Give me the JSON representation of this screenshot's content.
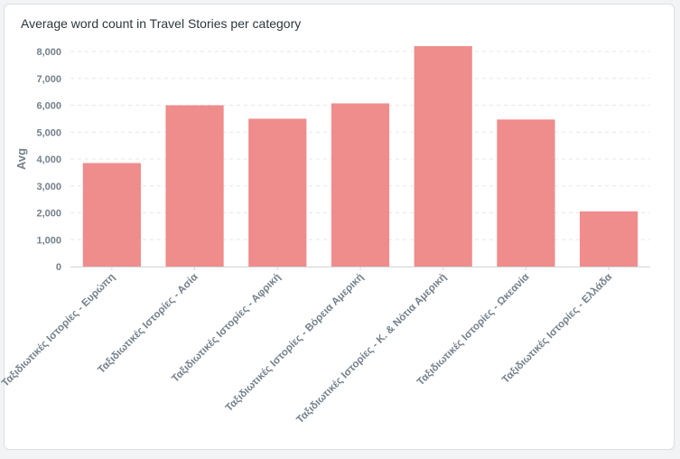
{
  "card": {
    "title": "Average word count in Travel Stories per category"
  },
  "chart_data": {
    "type": "bar",
    "title": "Average word count in Travel Stories per category",
    "xlabel": "",
    "ylabel": "Avg",
    "ylim": [
      0,
      8000
    ],
    "yticks": [
      "0",
      "1,000",
      "2,000",
      "3,000",
      "4,000",
      "5,000",
      "6,000",
      "7,000",
      "8,000"
    ],
    "categories": [
      "Ταξιδιωτικές Ιστορίες - Ευρώπη",
      "Ταξιδιωτικές Ιστορίες - Ασία",
      "Ταξιδιωτικές Ιστορίες - Αφρική",
      "Ταξιδιωτικές Ιστορίες - Βόρεια Αμερική",
      "Ταξιδιωτικές Ιστορίες - Κ. & Νότια Αμερική",
      "Ταξιδιωτικές Ιστορίες - Ωκεανία",
      "Ταξιδιωτικές Ιστορίες - Ελλάδα"
    ],
    "values": [
      3850,
      6000,
      5500,
      6070,
      8200,
      5470,
      2050
    ],
    "bar_color": "#ef8c8c",
    "grid": true
  }
}
